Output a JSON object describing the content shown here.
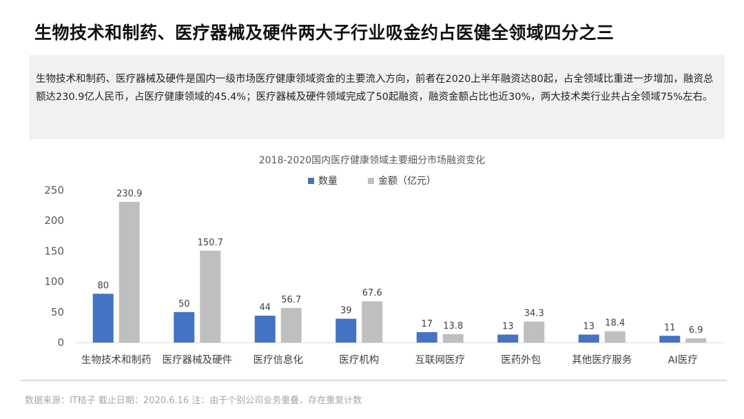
{
  "headline": "生物技术和制药、医疗器械及硬件两大子行业吸金约占医健全领域四分之三",
  "summary": "生物技术和制药、医疗器械及硬件是国内一级市场医疗健康领域资金的主要流入方向，前者在2020上半年融资达80起，占全领域比重进一步增加，融资总额达230.9亿人民币，占医疗健康领域的45.4%；医疗器械及硬件领域完成了50起融资，融资金额占比也近30%，两大技术类行业共占全领域75%左右。",
  "source_note": "数据来源：IT桔子  截止日期：2020.6.16  注：由于个别公司业务重叠，存在重复计数",
  "chart_data": {
    "type": "bar",
    "title": "2018-2020国内医疗健康领域主要细分市场融资变化",
    "categories": [
      "生物技术和制药",
      "医疗器械及硬件",
      "医疗信息化",
      "医疗机构",
      "互联网医疗",
      "医药外包",
      "其他医疗服务",
      "AI医疗"
    ],
    "series": [
      {
        "name": "数量",
        "color": "#4472c4",
        "values": [
          80,
          50,
          44,
          39,
          17,
          13,
          13,
          11
        ]
      },
      {
        "name": "金额（亿元）",
        "color": "#bfbfbf",
        "values": [
          230.9,
          150.7,
          56.7,
          67.6,
          13.8,
          34.3,
          18.4,
          6.9
        ]
      }
    ],
    "ylim": [
      0,
      250
    ],
    "yticks": [
      0,
      50,
      100,
      150,
      200,
      250
    ],
    "grid": false,
    "legend_position": "top-center"
  }
}
